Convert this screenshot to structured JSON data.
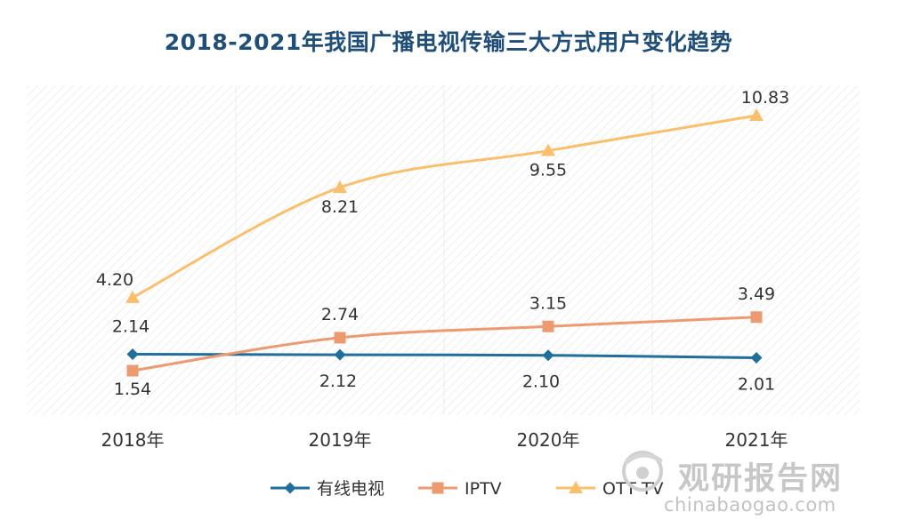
{
  "chart_data": {
    "type": "line",
    "title": "2018-2021年我国广播电视传输三大方式用户变化趋势",
    "xlabel": "",
    "ylabel": "",
    "categories": [
      "2018年",
      "2019年",
      "2020年",
      "2021年"
    ],
    "ylim": [
      0,
      12
    ],
    "grid": false,
    "legend_position": "bottom",
    "series": [
      {
        "name": "有线电视",
        "values": [
          2.14,
          2.12,
          2.1,
          2.01
        ],
        "labels": [
          "2.14",
          "2.12",
          "2.10",
          "2.01"
        ],
        "color": "#1f6e9c",
        "marker": "diamond"
      },
      {
        "name": "IPTV",
        "values": [
          1.54,
          2.74,
          3.15,
          3.49
        ],
        "labels": [
          "1.54",
          "2.74",
          "3.15",
          "3.49"
        ],
        "color": "#ed9a70",
        "marker": "square"
      },
      {
        "name": "OTT TV",
        "values": [
          4.2,
          8.21,
          9.55,
          10.83
        ],
        "labels": [
          "4.20",
          "8.21",
          "9.55",
          "10.83"
        ],
        "color": "#fbbf6b",
        "marker": "triangle"
      }
    ]
  },
  "watermark": {
    "name": "观研报告网",
    "url": "chinabaogao.com"
  }
}
